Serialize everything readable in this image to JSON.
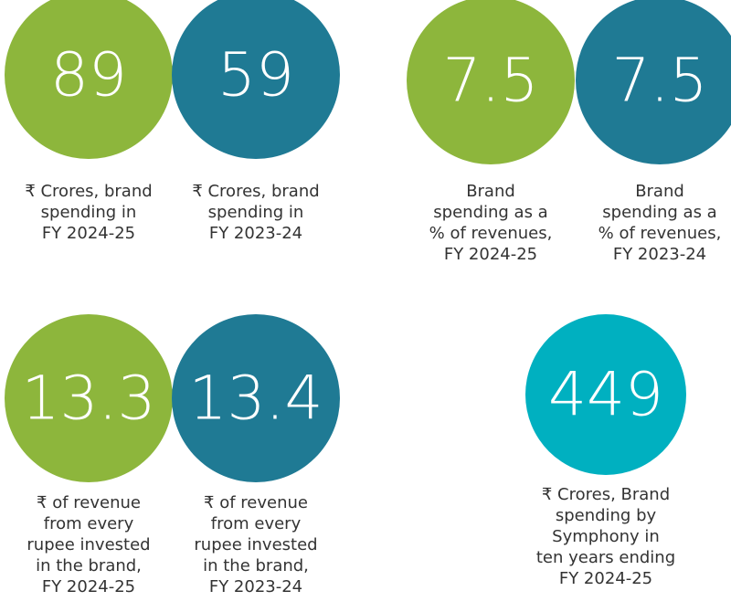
{
  "items": [
    {
      "value": "89",
      "color": "#8db63c",
      "label": [
        "₹ Crores, brand",
        "spending in",
        "FY 2024-25"
      ]
    },
    {
      "value": "59",
      "color": "#1f7a94",
      "label": [
        "₹ Crores, brand",
        "spending in",
        "FY 2023-24"
      ]
    },
    {
      "value": "7.5",
      "color": "#8db63c",
      "label": [
        "Brand",
        "spending as a",
        "% of revenues,",
        "FY 2024-25"
      ]
    },
    {
      "value": "7.5",
      "color": "#1f7a94",
      "label": [
        "Brand",
        "spending as a",
        "% of revenues,",
        "FY 2023-24"
      ]
    },
    {
      "value": "13.3",
      "color": "#8db63c",
      "label": [
        "₹ of revenue",
        "from every",
        "rupee invested",
        "in the brand,",
        "FY 2024-25"
      ]
    },
    {
      "value": "13.4",
      "color": "#1f7a94",
      "label": [
        "₹ of revenue",
        "from every",
        "rupee invested",
        "in the brand,",
        "FY 2023-24"
      ]
    },
    {
      "value": "449",
      "color": "#00b0c0",
      "label": [
        "₹ Crores, Brand",
        "spending by",
        "Symphony in",
        "ten years ending",
        "FY 2024-25"
      ]
    }
  ]
}
